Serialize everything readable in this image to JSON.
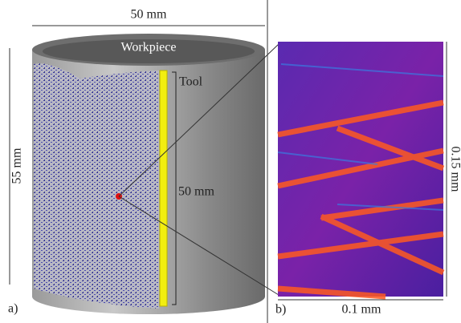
{
  "panel_a": {
    "label": "a)",
    "width_label": "50 mm",
    "height_label": "55 mm",
    "workpiece_label": "Workpiece",
    "tool_label": "Tool",
    "tool_length_label": "50 mm"
  },
  "panel_b": {
    "label": "b)",
    "width_label": "0.1 mm",
    "height_label": "0.15 mm"
  }
}
